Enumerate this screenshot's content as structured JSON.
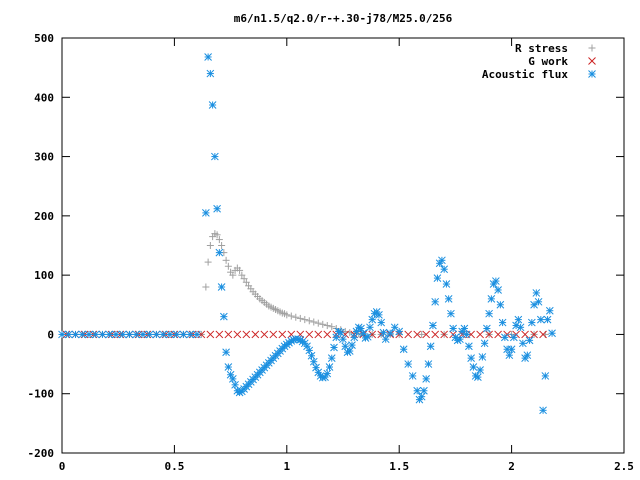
{
  "chart_data": {
    "type": "scatter",
    "title": "m6/n1.5/q2.0/r-+.30-j78/M25.0/256",
    "xlabel": "",
    "ylabel": "",
    "xlim": [
      0,
      2.5
    ],
    "ylim": [
      -200,
      500
    ],
    "x_ticks": [
      0,
      0.5,
      1,
      1.5,
      2,
      2.5
    ],
    "x_tick_labels": [
      "0",
      "0.5",
      "1",
      "1.5",
      "2",
      "2.5"
    ],
    "y_ticks": [
      -200,
      -100,
      0,
      100,
      200,
      300,
      400,
      500
    ],
    "y_tick_labels": [
      "-200",
      "-100",
      "0",
      "100",
      "200",
      "300",
      "400",
      "500"
    ],
    "grid": false,
    "legend_position": "top-right",
    "series": [
      {
        "name": "R stress",
        "marker": "plus",
        "color": "#a0a0a0",
        "points": [
          [
            0.02,
            0
          ],
          [
            0.06,
            0
          ],
          [
            0.1,
            0
          ],
          [
            0.14,
            0
          ],
          [
            0.18,
            0
          ],
          [
            0.22,
            0
          ],
          [
            0.26,
            0
          ],
          [
            0.3,
            0
          ],
          [
            0.34,
            0
          ],
          [
            0.38,
            0
          ],
          [
            0.42,
            0
          ],
          [
            0.46,
            0
          ],
          [
            0.5,
            0
          ],
          [
            0.54,
            0
          ],
          [
            0.58,
            0
          ],
          [
            0.62,
            0
          ],
          [
            0.64,
            80
          ],
          [
            0.65,
            122
          ],
          [
            0.66,
            150
          ],
          [
            0.67,
            165
          ],
          [
            0.68,
            170
          ],
          [
            0.69,
            168
          ],
          [
            0.7,
            160
          ],
          [
            0.71,
            150
          ],
          [
            0.72,
            138
          ],
          [
            0.73,
            125
          ],
          [
            0.74,
            115
          ],
          [
            0.75,
            105
          ],
          [
            0.76,
            100
          ],
          [
            0.77,
            108
          ],
          [
            0.78,
            112
          ],
          [
            0.79,
            108
          ],
          [
            0.8,
            100
          ],
          [
            0.81,
            94
          ],
          [
            0.82,
            88
          ],
          [
            0.83,
            82
          ],
          [
            0.84,
            77
          ],
          [
            0.85,
            72
          ],
          [
            0.86,
            68
          ],
          [
            0.87,
            64
          ],
          [
            0.88,
            60
          ],
          [
            0.89,
            57
          ],
          [
            0.9,
            54
          ],
          [
            0.91,
            51
          ],
          [
            0.92,
            48
          ],
          [
            0.93,
            46
          ],
          [
            0.94,
            44
          ],
          [
            0.95,
            42
          ],
          [
            0.96,
            40
          ],
          [
            0.97,
            38
          ],
          [
            0.98,
            36
          ],
          [
            0.99,
            35
          ],
          [
            1.0,
            33
          ],
          [
            1.02,
            31
          ],
          [
            1.04,
            29
          ],
          [
            1.06,
            27
          ],
          [
            1.08,
            25
          ],
          [
            1.1,
            23
          ],
          [
            1.12,
            21
          ],
          [
            1.14,
            19
          ],
          [
            1.16,
            17
          ],
          [
            1.18,
            15
          ],
          [
            1.2,
            13
          ],
          [
            1.22,
            10
          ],
          [
            1.24,
            8
          ],
          [
            1.26,
            5
          ],
          [
            1.28,
            3
          ],
          [
            1.3,
            2
          ],
          [
            1.32,
            1
          ],
          [
            1.34,
            0
          ],
          [
            1.38,
            0
          ],
          [
            1.42,
            0
          ],
          [
            1.46,
            0
          ],
          [
            1.5,
            0
          ],
          [
            1.6,
            0
          ],
          [
            1.7,
            0
          ],
          [
            1.8,
            0
          ],
          [
            1.9,
            0
          ],
          [
            2.0,
            0
          ],
          [
            2.1,
            0
          ],
          [
            2.15,
            0
          ]
        ]
      },
      {
        "name": "G work",
        "marker": "cross",
        "color": "#cc2222",
        "points": [
          [
            0.02,
            0
          ],
          [
            0.06,
            0
          ],
          [
            0.1,
            0
          ],
          [
            0.14,
            0
          ],
          [
            0.18,
            0
          ],
          [
            0.22,
            0
          ],
          [
            0.26,
            0
          ],
          [
            0.3,
            0
          ],
          [
            0.34,
            0
          ],
          [
            0.38,
            0
          ],
          [
            0.42,
            0
          ],
          [
            0.46,
            0
          ],
          [
            0.5,
            0
          ],
          [
            0.54,
            0
          ],
          [
            0.58,
            0
          ],
          [
            0.62,
            0
          ],
          [
            0.66,
            0
          ],
          [
            0.7,
            0
          ],
          [
            0.74,
            0
          ],
          [
            0.78,
            0
          ],
          [
            0.82,
            0
          ],
          [
            0.86,
            0
          ],
          [
            0.9,
            0
          ],
          [
            0.94,
            0
          ],
          [
            0.98,
            0
          ],
          [
            1.02,
            0
          ],
          [
            1.06,
            0
          ],
          [
            1.1,
            0
          ],
          [
            1.14,
            0
          ],
          [
            1.18,
            0
          ],
          [
            1.22,
            0
          ],
          [
            1.26,
            0
          ],
          [
            1.3,
            0
          ],
          [
            1.34,
            0
          ],
          [
            1.38,
            0
          ],
          [
            1.42,
            0
          ],
          [
            1.46,
            0
          ],
          [
            1.5,
            0
          ],
          [
            1.54,
            0
          ],
          [
            1.58,
            0
          ],
          [
            1.62,
            0
          ],
          [
            1.66,
            0
          ],
          [
            1.7,
            0
          ],
          [
            1.74,
            0
          ],
          [
            1.78,
            0
          ],
          [
            1.82,
            0
          ],
          [
            1.86,
            0
          ],
          [
            1.9,
            0
          ],
          [
            1.94,
            0
          ],
          [
            1.98,
            0
          ],
          [
            2.02,
            0
          ],
          [
            2.06,
            0
          ],
          [
            2.1,
            0
          ],
          [
            2.14,
            0
          ]
        ]
      },
      {
        "name": "Acoustic flux",
        "marker": "star",
        "color": "#1a8fe0",
        "points": [
          [
            0.0,
            0
          ],
          [
            0.03,
            0
          ],
          [
            0.06,
            0
          ],
          [
            0.09,
            0
          ],
          [
            0.12,
            0
          ],
          [
            0.15,
            0
          ],
          [
            0.18,
            0
          ],
          [
            0.21,
            0
          ],
          [
            0.24,
            0
          ],
          [
            0.27,
            0
          ],
          [
            0.3,
            0
          ],
          [
            0.33,
            0
          ],
          [
            0.36,
            0
          ],
          [
            0.39,
            0
          ],
          [
            0.42,
            0
          ],
          [
            0.45,
            0
          ],
          [
            0.48,
            0
          ],
          [
            0.51,
            0
          ],
          [
            0.54,
            0
          ],
          [
            0.57,
            0
          ],
          [
            0.6,
            0
          ],
          [
            0.64,
            205
          ],
          [
            0.65,
            468
          ],
          [
            0.66,
            440
          ],
          [
            0.67,
            387
          ],
          [
            0.68,
            300
          ],
          [
            0.69,
            212
          ],
          [
            0.7,
            138
          ],
          [
            0.71,
            80
          ],
          [
            0.72,
            30
          ],
          [
            0.73,
            -30
          ],
          [
            0.74,
            -55
          ],
          [
            0.75,
            -68
          ],
          [
            0.76,
            -75
          ],
          [
            0.77,
            -85
          ],
          [
            0.78,
            -95
          ],
          [
            0.79,
            -98
          ],
          [
            0.8,
            -96
          ],
          [
            0.81,
            -92
          ],
          [
            0.82,
            -88
          ],
          [
            0.83,
            -84
          ],
          [
            0.84,
            -80
          ],
          [
            0.85,
            -76
          ],
          [
            0.86,
            -72
          ],
          [
            0.87,
            -68
          ],
          [
            0.88,
            -64
          ],
          [
            0.89,
            -60
          ],
          [
            0.9,
            -56
          ],
          [
            0.91,
            -52
          ],
          [
            0.92,
            -48
          ],
          [
            0.93,
            -44
          ],
          [
            0.94,
            -40
          ],
          [
            0.95,
            -36
          ],
          [
            0.96,
            -32
          ],
          [
            0.97,
            -28
          ],
          [
            0.98,
            -24
          ],
          [
            0.99,
            -20
          ],
          [
            1.0,
            -17
          ],
          [
            1.01,
            -14
          ],
          [
            1.02,
            -11
          ],
          [
            1.03,
            -9
          ],
          [
            1.04,
            -8
          ],
          [
            1.05,
            -8
          ],
          [
            1.06,
            -9
          ],
          [
            1.07,
            -12
          ],
          [
            1.08,
            -15
          ],
          [
            1.09,
            -20
          ],
          [
            1.1,
            -27
          ],
          [
            1.11,
            -36
          ],
          [
            1.12,
            -46
          ],
          [
            1.13,
            -56
          ],
          [
            1.14,
            -64
          ],
          [
            1.15,
            -70
          ],
          [
            1.16,
            -73
          ],
          [
            1.17,
            -72
          ],
          [
            1.18,
            -66
          ],
          [
            1.19,
            -55
          ],
          [
            1.2,
            -40
          ],
          [
            1.21,
            -22
          ],
          [
            1.22,
            -5
          ],
          [
            1.23,
            5
          ],
          [
            1.24,
            3
          ],
          [
            1.25,
            -8
          ],
          [
            1.26,
            -20
          ],
          [
            1.27,
            -30
          ],
          [
            1.28,
            -28
          ],
          [
            1.29,
            -18
          ],
          [
            1.3,
            -5
          ],
          [
            1.31,
            5
          ],
          [
            1.32,
            12
          ],
          [
            1.33,
            10
          ],
          [
            1.34,
            2
          ],
          [
            1.35,
            -6
          ],
          [
            1.36,
            -4
          ],
          [
            1.37,
            12
          ],
          [
            1.38,
            25
          ],
          [
            1.39,
            35
          ],
          [
            1.4,
            38
          ],
          [
            1.41,
            33
          ],
          [
            1.42,
            20
          ],
          [
            1.43,
            3
          ],
          [
            1.44,
            -8
          ],
          [
            1.46,
            2
          ],
          [
            1.48,
            12
          ],
          [
            1.5,
            5
          ],
          [
            1.52,
            -25
          ],
          [
            1.54,
            -50
          ],
          [
            1.56,
            -70
          ],
          [
            1.58,
            -95
          ],
          [
            1.59,
            -110
          ],
          [
            1.6,
            -105
          ],
          [
            1.61,
            -95
          ],
          [
            1.62,
            -75
          ],
          [
            1.63,
            -50
          ],
          [
            1.64,
            -20
          ],
          [
            1.65,
            15
          ],
          [
            1.66,
            55
          ],
          [
            1.67,
            95
          ],
          [
            1.68,
            120
          ],
          [
            1.69,
            125
          ],
          [
            1.7,
            110
          ],
          [
            1.71,
            85
          ],
          [
            1.72,
            60
          ],
          [
            1.73,
            35
          ],
          [
            1.74,
            10
          ],
          [
            1.75,
            -5
          ],
          [
            1.76,
            -10
          ],
          [
            1.77,
            -8
          ],
          [
            1.78,
            5
          ],
          [
            1.79,
            10
          ],
          [
            1.8,
            0
          ],
          [
            1.81,
            -20
          ],
          [
            1.82,
            -40
          ],
          [
            1.83,
            -55
          ],
          [
            1.84,
            -70
          ],
          [
            1.85,
            -72
          ],
          [
            1.86,
            -60
          ],
          [
            1.87,
            -38
          ],
          [
            1.88,
            -15
          ],
          [
            1.89,
            10
          ],
          [
            1.9,
            35
          ],
          [
            1.91,
            60
          ],
          [
            1.92,
            85
          ],
          [
            1.93,
            90
          ],
          [
            1.94,
            75
          ],
          [
            1.95,
            50
          ],
          [
            1.96,
            20
          ],
          [
            1.97,
            -5
          ],
          [
            1.98,
            -25
          ],
          [
            1.99,
            -35
          ],
          [
            2.0,
            -25
          ],
          [
            2.01,
            -5
          ],
          [
            2.02,
            15
          ],
          [
            2.03,
            25
          ],
          [
            2.04,
            12
          ],
          [
            2.05,
            -15
          ],
          [
            2.06,
            -40
          ],
          [
            2.07,
            -35
          ],
          [
            2.08,
            -10
          ],
          [
            2.09,
            20
          ],
          [
            2.1,
            50
          ],
          [
            2.11,
            70
          ],
          [
            2.12,
            55
          ],
          [
            2.13,
            25
          ],
          [
            2.14,
            -128
          ],
          [
            2.15,
            -70
          ],
          [
            2.16,
            25
          ],
          [
            2.17,
            40
          ],
          [
            2.18,
            2
          ]
        ]
      }
    ]
  }
}
